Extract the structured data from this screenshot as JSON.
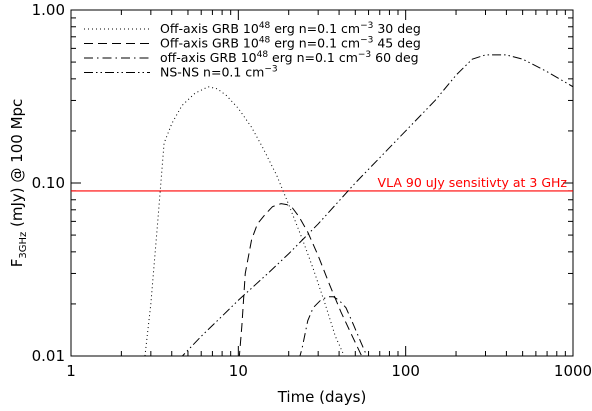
{
  "chart_data": {
    "type": "line",
    "xlabel": "Time (days)",
    "ylabel": {
      "main": "F",
      "subscript": "3GHz",
      "rest": " (mJy) @ 100 Mpc"
    },
    "x_scale": "log",
    "y_scale": "log",
    "xlim": [
      1,
      1000
    ],
    "ylim": [
      0.01,
      1.0
    ],
    "x_ticks": [
      {
        "value": 1,
        "label": "1"
      },
      {
        "value": 10,
        "label": "10"
      },
      {
        "value": 100,
        "label": "100"
      },
      {
        "value": 1000,
        "label": "1000"
      }
    ],
    "y_ticks": [
      {
        "value": 0.01,
        "label": "0.01"
      },
      {
        "value": 0.1,
        "label": "0.10"
      },
      {
        "value": 1.0,
        "label": "1.00"
      }
    ],
    "grid": false,
    "legend_position": "top-left",
    "series": [
      {
        "name": "Off-axis GRB 10^48 erg n=0.1 cm^-3 30 deg",
        "legend_parts": [
          "Off-axis GRB 10",
          "48",
          " erg n=0.1 cm",
          "−3",
          " 30 deg"
        ],
        "dash": "dotted",
        "x": [
          2.75,
          3.0,
          3.3,
          3.6,
          4.0,
          4.6,
          5.5,
          6.6,
          7.5,
          8.5,
          10,
          12,
          14,
          17,
          20,
          24,
          28,
          33,
          38,
          44
        ],
        "y": [
          0.0095,
          0.02,
          0.06,
          0.17,
          0.22,
          0.28,
          0.33,
          0.36,
          0.35,
          0.32,
          0.27,
          0.21,
          0.16,
          0.11,
          0.075,
          0.048,
          0.032,
          0.02,
          0.013,
          0.0095
        ]
      },
      {
        "name": "Off-axis GRB 10^48 erg n=0.1 cm^-3 45 deg",
        "legend_parts": [
          "Off-axis GRB 10",
          "48",
          " erg n=0.1 cm",
          "−3",
          " 45 deg"
        ],
        "dash": "dashed",
        "x": [
          10.1,
          10.5,
          11,
          12,
          13,
          14.5,
          16,
          18,
          19.5,
          21,
          23,
          26,
          30,
          35,
          41,
          48,
          56
        ],
        "y": [
          0.0095,
          0.015,
          0.03,
          0.047,
          0.058,
          0.066,
          0.073,
          0.076,
          0.075,
          0.072,
          0.064,
          0.052,
          0.038,
          0.026,
          0.018,
          0.013,
          0.0095
        ]
      },
      {
        "name": "off-axis GRB 10^48 erg n=0.1 cm^-3 60 deg",
        "legend_parts": [
          "off-axis GRB 10",
          "48",
          " erg n=0.1 cm",
          "−3",
          " 60 deg"
        ],
        "dash": "dashdot",
        "x": [
          23,
          24,
          26,
          28,
          31,
          34,
          37,
          40,
          44,
          49,
          54,
          60
        ],
        "y": [
          0.0095,
          0.011,
          0.016,
          0.019,
          0.021,
          0.022,
          0.022,
          0.021,
          0.019,
          0.015,
          0.012,
          0.0095
        ]
      },
      {
        "name": "NS-NS n=0.1 cm^-3",
        "legend_parts": [
          "NS-NS n=0.1 cm",
          "−3",
          "",
          "",
          ""
        ],
        "dash": "dashdotdot",
        "x": [
          4.4,
          6,
          8,
          10,
          15,
          20,
          30,
          50,
          70,
          100,
          150,
          200,
          250,
          300,
          400,
          500,
          700,
          1000
        ],
        "y": [
          0.0095,
          0.013,
          0.017,
          0.021,
          0.03,
          0.039,
          0.058,
          0.1,
          0.14,
          0.2,
          0.3,
          0.42,
          0.52,
          0.55,
          0.55,
          0.52,
          0.44,
          0.36
        ]
      }
    ],
    "reference_line": {
      "y": 0.09,
      "color": "#ff0000",
      "label": "VLA 90 uJy sensitivty at 3 GHz"
    }
  }
}
